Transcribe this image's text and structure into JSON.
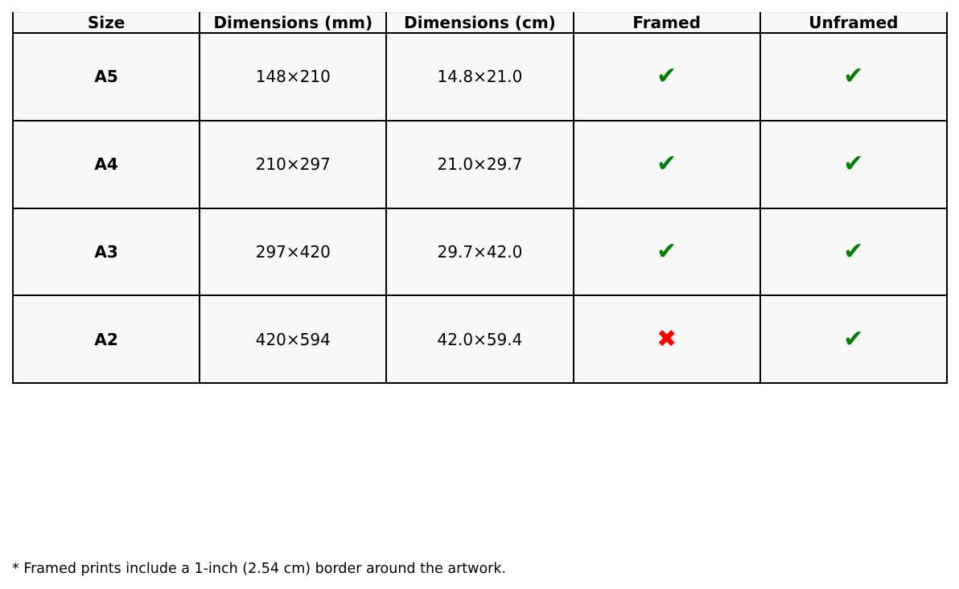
{
  "table": {
    "headers": [
      "Size",
      "Dimensions (mm)",
      "Dimensions (cm)",
      "Framed",
      "Unframed"
    ],
    "rows": [
      {
        "size": "A5",
        "mm": "148×210",
        "cm": "14.8×21.0",
        "framed": "✔",
        "unframed": "✔"
      },
      {
        "size": "A4",
        "mm": "210×297",
        "cm": "21.0×29.7",
        "framed": "✔",
        "unframed": "✔"
      },
      {
        "size": "A3",
        "mm": "297×420",
        "cm": "29.7×42.0",
        "framed": "✔",
        "unframed": "✔"
      },
      {
        "size": "A2",
        "mm": "420×594",
        "cm": "42.0×59.4",
        "framed": "✖",
        "unframed": "✔"
      }
    ]
  },
  "colors": {
    "available": "#008000",
    "unavailable": "#ff0000"
  },
  "footnote": "* Framed prints include a 1-inch (2.54 cm) border around the artwork."
}
